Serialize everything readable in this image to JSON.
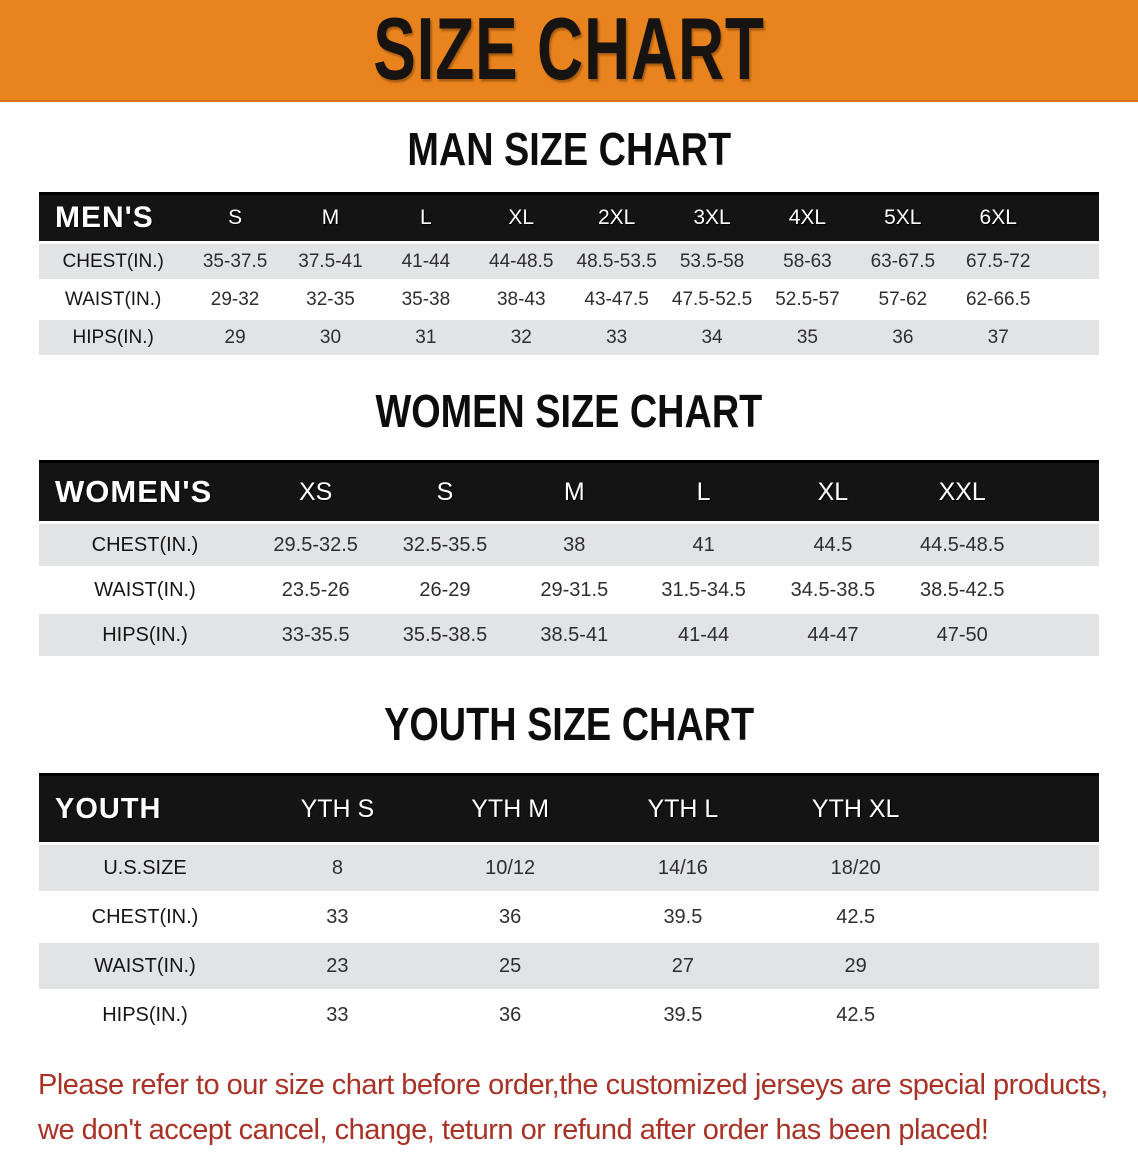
{
  "banner": {
    "title": "SIZE CHART"
  },
  "colors": {
    "banner_bg": "#E8831D",
    "table_header_bg": "#141414",
    "stripe_gray": "#E2E3E5",
    "stripe_white": "#FFFFFF",
    "disclaimer_red": "#A93226"
  },
  "sections": [
    {
      "heading": "MAN SIZE CHART",
      "corner_label": "MEN'S",
      "columns": [
        "S",
        "M",
        "L",
        "XL",
        "2XL",
        "3XL",
        "4XL",
        "5XL",
        "6XL"
      ],
      "rows": [
        {
          "label": "CHEST(IN.)",
          "values": [
            "35-37.5",
            "37.5-41",
            "41-44",
            "44-48.5",
            "48.5-53.5",
            "53.5-58",
            "58-63",
            "63-67.5",
            "67.5-72"
          ]
        },
        {
          "label": "WAIST(IN.)",
          "values": [
            "29-32",
            "32-35",
            "35-38",
            "38-43",
            "43-47.5",
            "47.5-52.5",
            "52.5-57",
            "57-62",
            "62-66.5"
          ]
        },
        {
          "label": "HIPS(IN.)",
          "values": [
            "29",
            "30",
            "31",
            "32",
            "33",
            "34",
            "35",
            "36",
            "37"
          ]
        }
      ]
    },
    {
      "heading": "WOMEN SIZE CHART",
      "corner_label": "WOMEN'S",
      "columns": [
        "XS",
        "S",
        "M",
        "L",
        "XL",
        "XXL"
      ],
      "rows": [
        {
          "label": "CHEST(IN.)",
          "values": [
            "29.5-32.5",
            "32.5-35.5",
            "38",
            "41",
            "44.5",
            "44.5-48.5"
          ]
        },
        {
          "label": "WAIST(IN.)",
          "values": [
            "23.5-26",
            "26-29",
            "29-31.5",
            "31.5-34.5",
            "34.5-38.5",
            "38.5-42.5"
          ]
        },
        {
          "label": "HIPS(IN.)",
          "values": [
            "33-35.5",
            "35.5-38.5",
            "38.5-41",
            "41-44",
            "44-47",
            "47-50"
          ]
        }
      ]
    },
    {
      "heading": "YOUTH SIZE CHART",
      "corner_label": "YOUTH",
      "columns": [
        "YTH S",
        "YTH M",
        "YTH L",
        "YTH XL"
      ],
      "rows": [
        {
          "label": "U.S.SIZE",
          "values": [
            "8",
            "10/12",
            "14/16",
            "18/20"
          ]
        },
        {
          "label": "CHEST(IN.)",
          "values": [
            "33",
            "36",
            "39.5",
            "42.5"
          ]
        },
        {
          "label": "WAIST(IN.)",
          "values": [
            "23",
            "25",
            "27",
            "29"
          ]
        },
        {
          "label": "HIPS(IN.)",
          "values": [
            "33",
            "36",
            "39.5",
            "42.5"
          ]
        }
      ]
    }
  ],
  "disclaimer": {
    "line1": "Please refer to our size chart before order,the customized jerseys are special products,",
    "line2": "we don't accept cancel, change, teturn or refund after order has been placed!"
  }
}
